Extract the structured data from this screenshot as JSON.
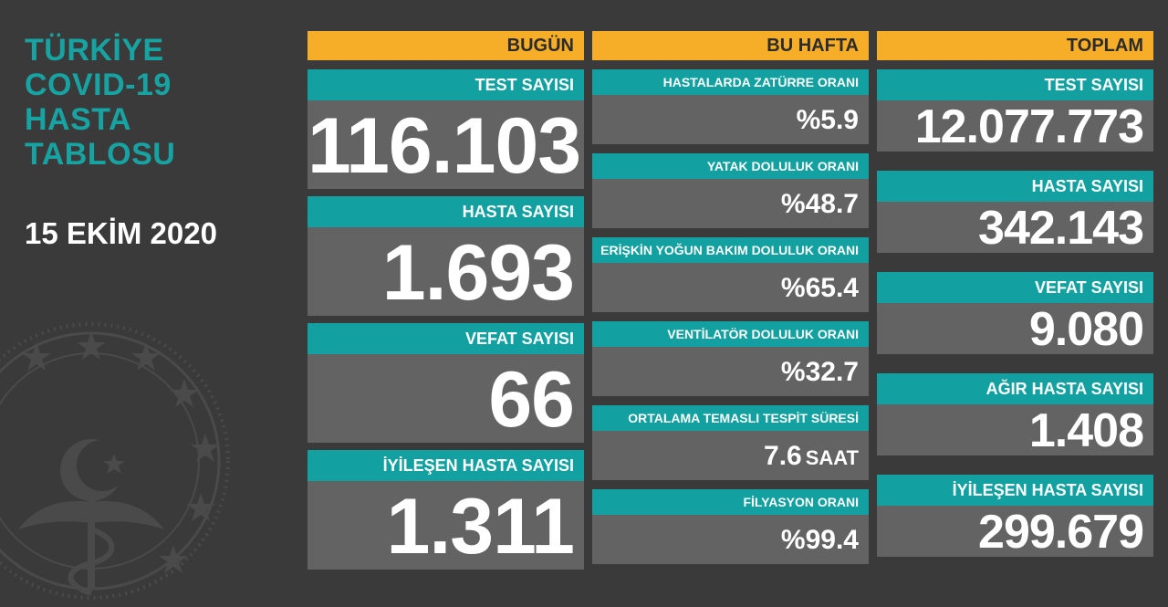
{
  "title": {
    "lines": [
      "TÜRKİYE",
      "COVID-19",
      "HASTA",
      "TABLOSU"
    ],
    "date": "15 EKİM 2020"
  },
  "today": {
    "header": "BUGÜN",
    "items": [
      {
        "label": "TEST SAYISI",
        "value": "116.103"
      },
      {
        "label": "HASTA SAYISI",
        "value": "1.693"
      },
      {
        "label": "VEFAT SAYISI",
        "value": "66"
      },
      {
        "label": "İYİLEŞEN HASTA SAYISI",
        "value": "1.311"
      }
    ]
  },
  "week": {
    "header": "BU HAFTA",
    "items": [
      {
        "label": "HASTALARDA ZATÜRRE ORANI",
        "value": "%5.9",
        "unit": ""
      },
      {
        "label": "YATAK DOLULUK ORANI",
        "value": "%48.7",
        "unit": ""
      },
      {
        "label": "ERİŞKİN YOĞUN BAKIM DOLULUK ORANI",
        "value": "%65.4",
        "unit": ""
      },
      {
        "label": "VENTİLATÖR DOLULUK ORANI",
        "value": "%32.7",
        "unit": ""
      },
      {
        "label": "ORTALAMA TEMASLI TESPİT SÜRESİ",
        "value": "7.6",
        "unit": "SAAT"
      },
      {
        "label": "FİLYASYON ORANI",
        "value": "%99.4",
        "unit": ""
      }
    ]
  },
  "total": {
    "header": "TOPLAM",
    "items": [
      {
        "label": "TEST SAYISI",
        "value": "12.077.773"
      },
      {
        "label": "HASTA SAYISI",
        "value": "342.143"
      },
      {
        "label": "VEFAT SAYISI",
        "value": "9.080"
      },
      {
        "label": "AĞIR HASTA SAYISI",
        "value": "1.408"
      },
      {
        "label": "İYİLEŞEN HASTA SAYISI",
        "value": "299.679"
      }
    ]
  },
  "colors": {
    "background": "#3a3a3a",
    "header_orange": "#f6ad27",
    "label_teal": "#12a1a0",
    "value_grey": "#636363",
    "title_teal": "#18a3a3"
  }
}
